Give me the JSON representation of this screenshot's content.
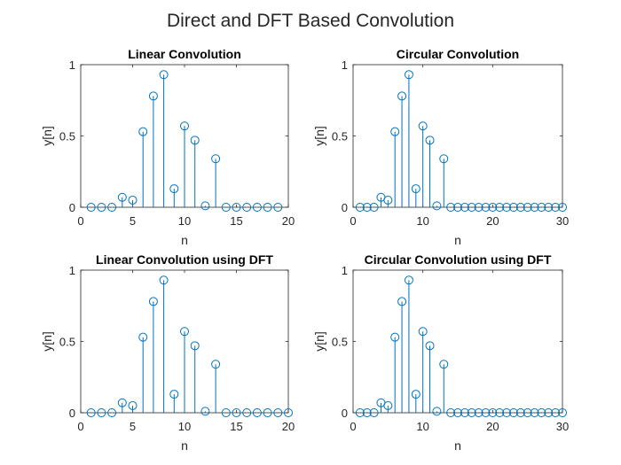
{
  "figure": {
    "title": "Direct and DFT Based Convolution",
    "stem_color": "#0072BD"
  },
  "chart_data": [
    {
      "type": "stem",
      "title": "Linear Convolution",
      "xlabel": "n",
      "ylabel": "y[n]",
      "xlim": [
        0,
        20
      ],
      "ylim": [
        0,
        1
      ],
      "xticks": [
        "0",
        "5",
        "10",
        "15",
        "20"
      ],
      "yticks": [
        "0",
        "0.5",
        "1"
      ],
      "x": [
        1,
        2,
        3,
        4,
        5,
        6,
        7,
        8,
        9,
        10,
        11,
        12,
        13,
        14,
        15,
        16,
        17,
        18,
        19
      ],
      "values": [
        0,
        0,
        0,
        0.07,
        0.05,
        0.53,
        0.78,
        0.93,
        0.13,
        0.57,
        0.47,
        0.01,
        0.34,
        0,
        0,
        0,
        0,
        0,
        0
      ]
    },
    {
      "type": "stem",
      "title": "Circular Convolution",
      "xlabel": "n",
      "ylabel": "y[n]",
      "xlim": [
        0,
        30
      ],
      "ylim": [
        0,
        1
      ],
      "xticks": [
        "0",
        "10",
        "20",
        "30"
      ],
      "yticks": [
        "0",
        "0.5",
        "1"
      ],
      "x": [
        1,
        2,
        3,
        4,
        5,
        6,
        7,
        8,
        9,
        10,
        11,
        12,
        13,
        14,
        15,
        16,
        17,
        18,
        19,
        20,
        21,
        22,
        23,
        24,
        25,
        26,
        27,
        28,
        29,
        30
      ],
      "values": [
        0,
        0,
        0,
        0.07,
        0.05,
        0.53,
        0.78,
        0.93,
        0.13,
        0.57,
        0.47,
        0.01,
        0.34,
        0,
        0,
        0,
        0,
        0,
        0,
        0,
        0,
        0,
        0,
        0,
        0,
        0,
        0,
        0,
        0,
        0
      ]
    },
    {
      "type": "stem",
      "title": "Linear Convolution using DFT",
      "xlabel": "n",
      "ylabel": "y[n]",
      "xlim": [
        0,
        20
      ],
      "ylim": [
        0,
        1
      ],
      "xticks": [
        "0",
        "5",
        "10",
        "15",
        "20"
      ],
      "yticks": [
        "0",
        "0.5",
        "1"
      ],
      "x": [
        1,
        2,
        3,
        4,
        5,
        6,
        7,
        8,
        9,
        10,
        11,
        12,
        13,
        14,
        15,
        16,
        17,
        18,
        19,
        20
      ],
      "values": [
        0,
        0,
        0,
        0.07,
        0.05,
        0.53,
        0.78,
        0.93,
        0.13,
        0.57,
        0.47,
        0.01,
        0.34,
        0,
        0,
        0,
        0,
        0,
        0,
        0
      ]
    },
    {
      "type": "stem",
      "title": "Circular Convolution using DFT",
      "xlabel": "n",
      "ylabel": "y[n]",
      "xlim": [
        0,
        30
      ],
      "ylim": [
        0,
        1
      ],
      "xticks": [
        "0",
        "10",
        "20",
        "30"
      ],
      "yticks": [
        "0",
        "0.5",
        "1"
      ],
      "x": [
        1,
        2,
        3,
        4,
        5,
        6,
        7,
        8,
        9,
        10,
        11,
        12,
        13,
        14,
        15,
        16,
        17,
        18,
        19,
        20,
        21,
        22,
        23,
        24,
        25,
        26,
        27,
        28,
        29,
        30
      ],
      "values": [
        0,
        0,
        0,
        0.07,
        0.05,
        0.53,
        0.78,
        0.93,
        0.13,
        0.57,
        0.47,
        0.01,
        0.34,
        0,
        0,
        0,
        0,
        0,
        0,
        0,
        0,
        0,
        0,
        0,
        0,
        0,
        0,
        0,
        0,
        0
      ]
    }
  ]
}
